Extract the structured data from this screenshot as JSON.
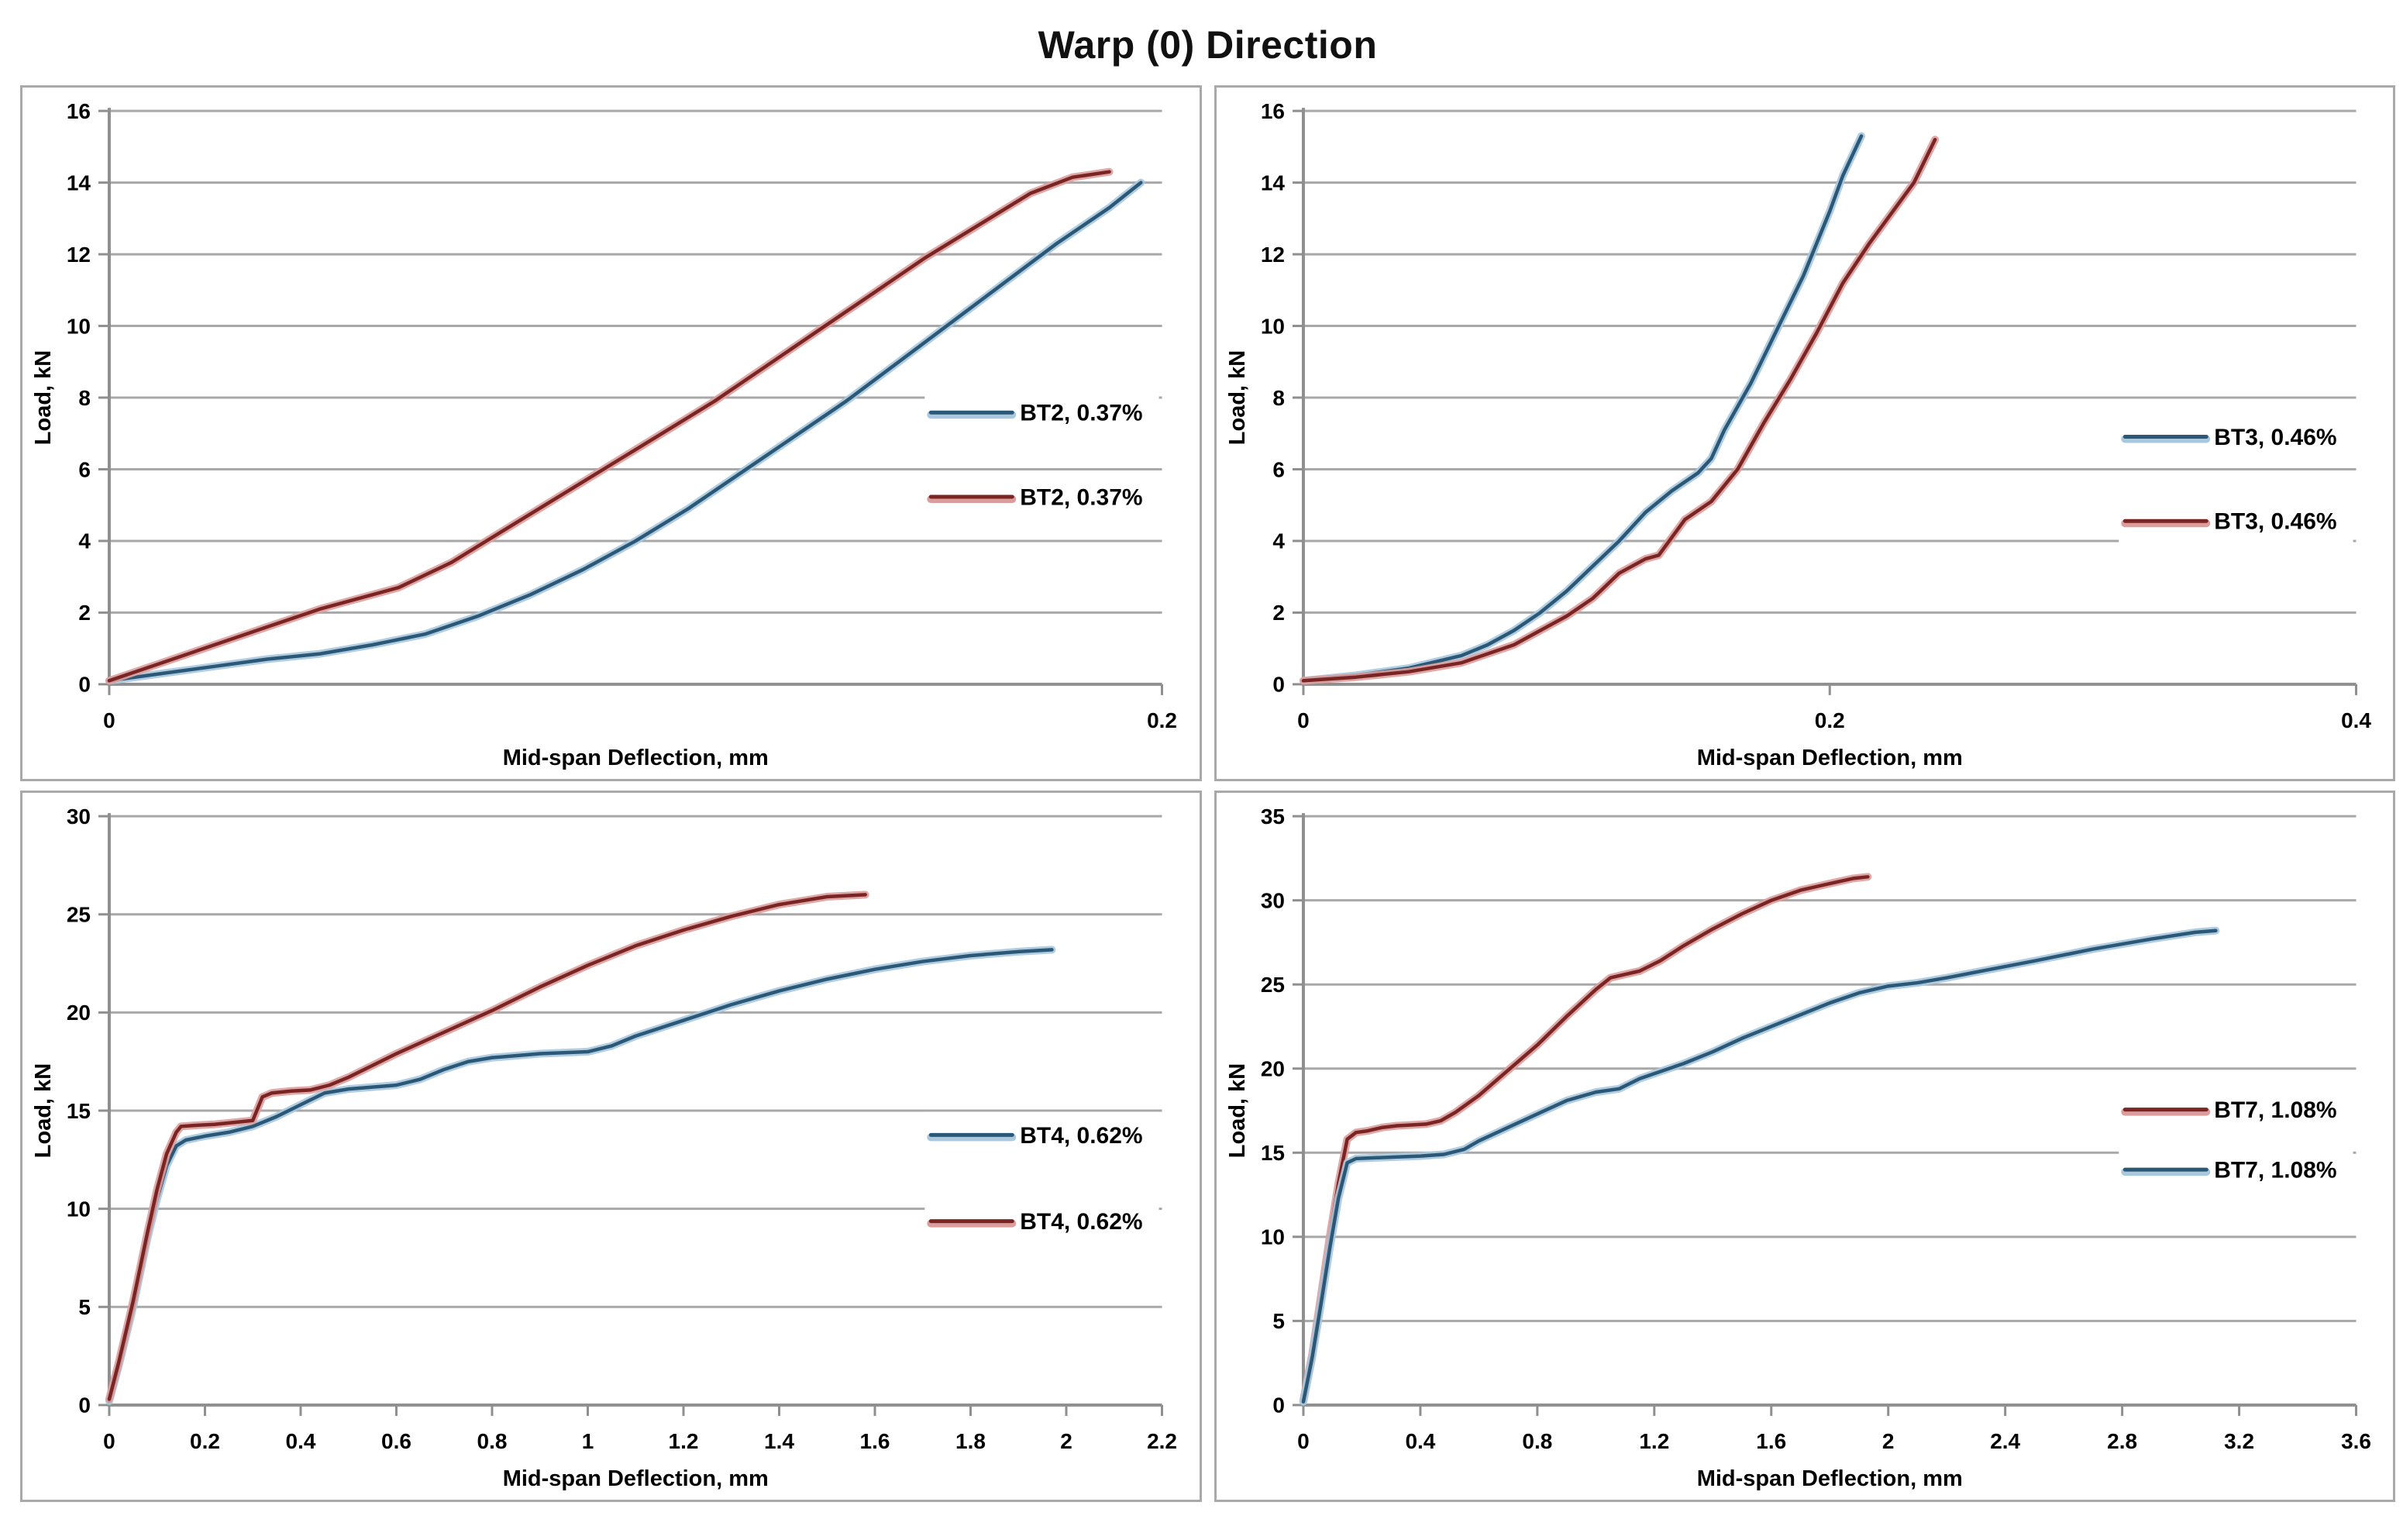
{
  "title": "Warp (0) Direction",
  "colors": {
    "blue": "#2b5876",
    "blue_halo": "#a9c8de",
    "red": "#7a2523",
    "red_halo": "#dc9e9d",
    "grid": "#a8a8a8",
    "axis": "#8f8f8f",
    "panel_border": "#a9a9a9",
    "text": "#000000",
    "title_text": "#111111"
  },
  "chart_data": [
    {
      "type": "line",
      "panel": "top-left",
      "title": "",
      "xlabel": "Mid-span Deflection, mm",
      "ylabel": "Load, kN",
      "xlim": [
        0,
        0.2
      ],
      "ylim": [
        0,
        16
      ],
      "xticks": [
        0,
        0.2
      ],
      "yticks": [
        0,
        2,
        4,
        6,
        8,
        10,
        12,
        14,
        16
      ],
      "grid": "horizontal-major",
      "legend_position": "right-center",
      "series": [
        {
          "name": "BT2, 0.37%",
          "color": "blue",
          "x": [
            0,
            0.01,
            0.02,
            0.03,
            0.04,
            0.05,
            0.06,
            0.07,
            0.08,
            0.09,
            0.1,
            0.11,
            0.12,
            0.13,
            0.14,
            0.15,
            0.16,
            0.17,
            0.18,
            0.19,
            0.196
          ],
          "y": [
            0.1,
            0.3,
            0.5,
            0.7,
            0.85,
            1.1,
            1.4,
            1.9,
            2.5,
            3.2,
            4.0,
            4.9,
            5.9,
            6.9,
            7.9,
            9.0,
            10.1,
            11.2,
            12.3,
            13.3,
            14.0
          ]
        },
        {
          "name": "BT2, 0.37%",
          "color": "red",
          "x": [
            0,
            0.01,
            0.02,
            0.03,
            0.04,
            0.05,
            0.055,
            0.065,
            0.075,
            0.085,
            0.095,
            0.105,
            0.115,
            0.125,
            0.135,
            0.145,
            0.155,
            0.165,
            0.175,
            0.183,
            0.19
          ],
          "y": [
            0.1,
            0.6,
            1.1,
            1.6,
            2.1,
            2.5,
            2.7,
            3.4,
            4.3,
            5.2,
            6.1,
            7.0,
            7.9,
            8.9,
            9.9,
            10.9,
            11.9,
            12.8,
            13.7,
            14.15,
            14.3
          ]
        }
      ]
    },
    {
      "type": "line",
      "panel": "top-right",
      "title": "",
      "xlabel": "Mid-span Deflection, mm",
      "ylabel": "Load, kN",
      "xlim": [
        0,
        0.4
      ],
      "ylim": [
        0,
        16
      ],
      "xticks": [
        0,
        0.2,
        0.4
      ],
      "yticks": [
        0,
        2,
        4,
        6,
        8,
        10,
        12,
        14,
        16
      ],
      "grid": "horizontal-major",
      "legend_position": "right-center",
      "series": [
        {
          "name": "BT3, 0.46%",
          "color": "blue",
          "x": [
            0,
            0.02,
            0.04,
            0.06,
            0.07,
            0.08,
            0.09,
            0.1,
            0.11,
            0.12,
            0.13,
            0.14,
            0.15,
            0.155,
            0.16,
            0.17,
            0.18,
            0.19,
            0.2,
            0.205,
            0.212
          ],
          "y": [
            0.1,
            0.25,
            0.45,
            0.8,
            1.1,
            1.5,
            2.0,
            2.6,
            3.3,
            4.0,
            4.8,
            5.4,
            5.9,
            6.3,
            7.1,
            8.4,
            9.9,
            11.4,
            13.2,
            14.2,
            15.3
          ]
        },
        {
          "name": "BT3, 0.46%",
          "color": "red",
          "x": [
            0,
            0.02,
            0.04,
            0.06,
            0.08,
            0.09,
            0.1,
            0.11,
            0.12,
            0.13,
            0.135,
            0.145,
            0.155,
            0.165,
            0.175,
            0.185,
            0.195,
            0.205,
            0.215,
            0.225,
            0.232,
            0.24
          ],
          "y": [
            0.1,
            0.2,
            0.35,
            0.6,
            1.1,
            1.5,
            1.9,
            2.4,
            3.1,
            3.5,
            3.6,
            4.6,
            5.1,
            6.0,
            7.3,
            8.5,
            9.8,
            11.2,
            12.3,
            13.3,
            14.0,
            15.2
          ]
        }
      ]
    },
    {
      "type": "line",
      "panel": "bottom-left",
      "title": "",
      "xlabel": "Mid-span Deflection, mm",
      "ylabel": "Load, kN",
      "xlim": [
        0,
        2.2
      ],
      "ylim": [
        0,
        30
      ],
      "xticks": [
        0,
        0.2,
        0.4,
        0.6,
        0.8,
        1,
        1.2,
        1.4,
        1.6,
        1.8,
        2,
        2.2
      ],
      "yticks": [
        0,
        5,
        10,
        15,
        20,
        25,
        30
      ],
      "grid": "horizontal-major",
      "legend_position": "right-center",
      "series": [
        {
          "name": "BT4, 0.62%",
          "color": "blue",
          "x": [
            0,
            0.02,
            0.05,
            0.08,
            0.1,
            0.12,
            0.14,
            0.16,
            0.2,
            0.25,
            0.3,
            0.35,
            0.4,
            0.45,
            0.5,
            0.55,
            0.6,
            0.65,
            0.7,
            0.75,
            0.8,
            0.85,
            0.9,
            1.0,
            1.05,
            1.1,
            1.2,
            1.3,
            1.4,
            1.5,
            1.6,
            1.7,
            1.8,
            1.9,
            1.97
          ],
          "y": [
            0.2,
            2.0,
            5.0,
            8.5,
            10.5,
            12.2,
            13.2,
            13.5,
            13.7,
            13.9,
            14.2,
            14.7,
            15.3,
            15.9,
            16.1,
            16.2,
            16.3,
            16.6,
            17.1,
            17.5,
            17.7,
            17.8,
            17.9,
            18.0,
            18.3,
            18.8,
            19.6,
            20.4,
            21.1,
            21.7,
            22.2,
            22.6,
            22.9,
            23.1,
            23.2
          ]
        },
        {
          "name": "BT4, 0.62%",
          "color": "red",
          "x": [
            0,
            0.02,
            0.05,
            0.08,
            0.1,
            0.12,
            0.14,
            0.15,
            0.18,
            0.22,
            0.26,
            0.3,
            0.32,
            0.34,
            0.38,
            0.42,
            0.46,
            0.5,
            0.55,
            0.6,
            0.7,
            0.8,
            0.9,
            1.0,
            1.1,
            1.2,
            1.3,
            1.4,
            1.5,
            1.58
          ],
          "y": [
            0.3,
            2.2,
            5.3,
            8.8,
            11.0,
            12.8,
            13.9,
            14.2,
            14.25,
            14.3,
            14.4,
            14.5,
            15.7,
            15.9,
            16.0,
            16.05,
            16.3,
            16.7,
            17.3,
            17.9,
            19.0,
            20.1,
            21.3,
            22.4,
            23.4,
            24.2,
            24.9,
            25.5,
            25.9,
            26.0
          ]
        }
      ]
    },
    {
      "type": "line",
      "panel": "bottom-right",
      "title": "",
      "xlabel": "Mid-span Deflection, mm",
      "ylabel": "Load, kN",
      "xlim": [
        0,
        3.6
      ],
      "ylim": [
        0,
        35
      ],
      "xticks": [
        0,
        0.4,
        0.8,
        1.2,
        1.6,
        2,
        2.4,
        2.8,
        3.2,
        3.6
      ],
      "yticks": [
        0,
        5,
        10,
        15,
        20,
        25,
        30,
        35
      ],
      "grid": "horizontal-major",
      "legend_position": "right-center",
      "series": [
        {
          "name": "BT7, 1.08%",
          "color": "red",
          "x": [
            0,
            0.03,
            0.06,
            0.09,
            0.12,
            0.15,
            0.18,
            0.22,
            0.27,
            0.32,
            0.37,
            0.42,
            0.47,
            0.52,
            0.6,
            0.7,
            0.8,
            0.9,
            1.0,
            1.05,
            1.1,
            1.15,
            1.22,
            1.3,
            1.4,
            1.5,
            1.6,
            1.7,
            1.8,
            1.88,
            1.93
          ],
          "y": [
            0.3,
            3.0,
            6.5,
            10.0,
            13.2,
            15.8,
            16.2,
            16.3,
            16.5,
            16.6,
            16.65,
            16.7,
            16.9,
            17.4,
            18.4,
            19.9,
            21.4,
            23.1,
            24.7,
            25.4,
            25.6,
            25.8,
            26.4,
            27.3,
            28.3,
            29.2,
            30.0,
            30.6,
            31.0,
            31.3,
            31.4
          ]
        },
        {
          "name": "BT7, 1.08%",
          "color": "blue",
          "x": [
            0,
            0.03,
            0.06,
            0.09,
            0.12,
            0.15,
            0.18,
            0.25,
            0.32,
            0.4,
            0.48,
            0.55,
            0.6,
            0.7,
            0.8,
            0.9,
            1.0,
            1.08,
            1.15,
            1.2,
            1.3,
            1.4,
            1.5,
            1.6,
            1.7,
            1.8,
            1.9,
            2.0,
            2.1,
            2.2,
            2.35,
            2.5,
            2.7,
            2.9,
            3.05,
            3.12
          ],
          "y": [
            0.2,
            2.8,
            6.0,
            9.3,
            12.3,
            14.4,
            14.65,
            14.7,
            14.75,
            14.8,
            14.9,
            15.2,
            15.7,
            16.5,
            17.3,
            18.1,
            18.6,
            18.8,
            19.4,
            19.7,
            20.3,
            21.0,
            21.8,
            22.5,
            23.2,
            23.9,
            24.5,
            24.9,
            25.1,
            25.4,
            25.9,
            26.4,
            27.1,
            27.7,
            28.1,
            28.2
          ]
        }
      ]
    }
  ]
}
